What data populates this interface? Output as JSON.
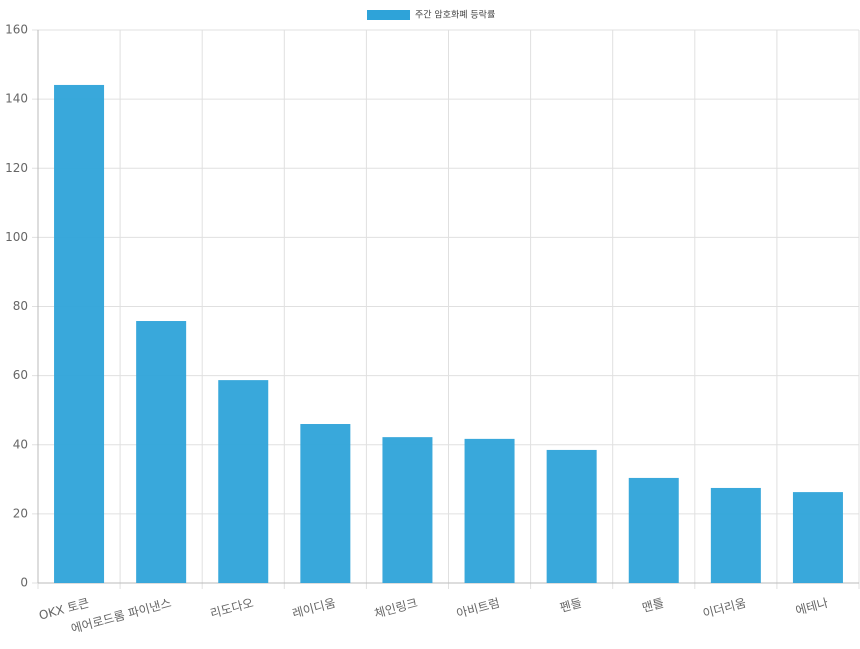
{
  "chart_data": {
    "type": "bar",
    "legend_position": "top",
    "series": [
      {
        "name": "주간 암호화폐 등락률",
        "color": "#2ea3d9",
        "values": [
          144.1,
          75.8,
          58.7,
          46.0,
          42.2,
          41.7,
          38.5,
          30.4,
          27.5,
          26.3
        ]
      }
    ],
    "categories": [
      "OKX 토큰",
      "에어로드롬 파이낸스",
      "리도다오",
      "레이디움",
      "체인링크",
      "아비트럼",
      "펜들",
      "맨틀",
      "이더리움",
      "에테나"
    ],
    "ylim": [
      0,
      160
    ],
    "yticks": [
      0,
      20,
      40,
      60,
      80,
      100,
      120,
      140,
      160
    ],
    "grid": true
  }
}
